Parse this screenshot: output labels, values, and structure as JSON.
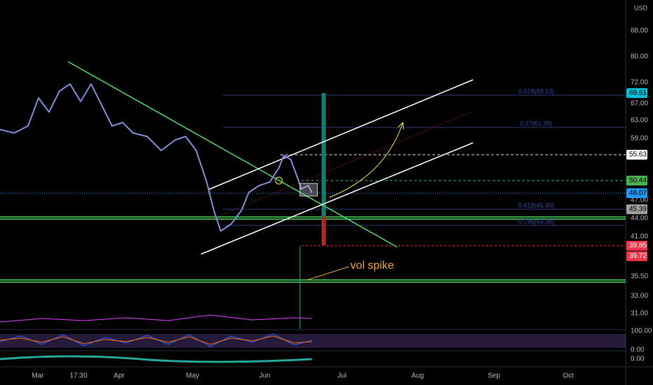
{
  "currency": "USD",
  "price_axis": [
    "88.00",
    "80.00",
    "72.00",
    "67.00",
    "63.00",
    "59.00",
    "47.00",
    "44.00",
    "41.00",
    "35.50",
    "33.00",
    "31.00",
    "100.00",
    "0.00",
    "0.00"
  ],
  "price_tags": [
    {
      "label": "69.61",
      "color": "#00bcd4",
      "text_color": "#000"
    },
    {
      "label": "55.63",
      "color": "#ffffff",
      "text_color": "#000"
    },
    {
      "label": "50.44",
      "color": "#4caf50",
      "text_color": "#000"
    },
    {
      "label": "48.07",
      "color": "#2196f3",
      "text_color": "#000"
    },
    {
      "label": "45.39",
      "color": "#9e9e9e",
      "text_color": "#000"
    },
    {
      "label": "39.85",
      "color": "#f23645",
      "text_color": "#fff"
    },
    {
      "label": "39.72",
      "color": "#f23645",
      "text_color": "#fff"
    }
  ],
  "time_axis": [
    "Mar",
    "17:30",
    "Apr",
    "May",
    "Jun",
    "Jul",
    "Aug",
    "Sep",
    "Oct"
  ],
  "fib_levels": [
    "0.618(69.10)",
    "0.27(61.39)",
    "0.618(45.40)",
    "0.786(43.38)"
  ],
  "annotation": "vol spike"
}
